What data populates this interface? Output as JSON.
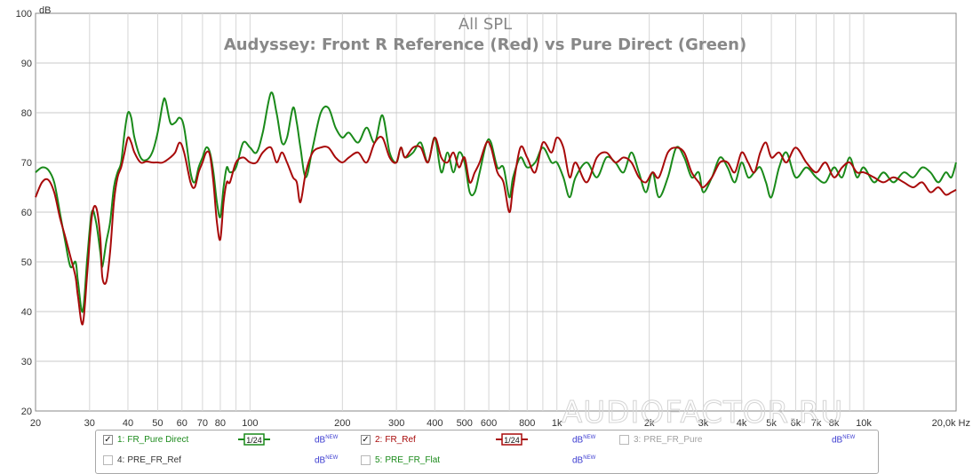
{
  "chart_data": {
    "type": "line",
    "title": "All SPL",
    "subtitle": "Audyssey: Front R Reference (Red) vs Pure Direct (Green)",
    "ylabel": "dB",
    "xlabel_unit": "Hz",
    "xscale": "log",
    "xlim": [
      20,
      20000
    ],
    "ylim": [
      20,
      100
    ],
    "grid": true,
    "yticks": [
      "100",
      "90",
      "80",
      "70",
      "60",
      "50",
      "40",
      "30",
      "20"
    ],
    "xticks": [
      {
        "v": 20,
        "l": "20"
      },
      {
        "v": 30,
        "l": "30"
      },
      {
        "v": 40,
        "l": "40"
      },
      {
        "v": 50,
        "l": "50"
      },
      {
        "v": 60,
        "l": "60"
      },
      {
        "v": 70,
        "l": "70"
      },
      {
        "v": 80,
        "l": "80"
      },
      {
        "v": 100,
        "l": "100"
      },
      {
        "v": 200,
        "l": "200"
      },
      {
        "v": 300,
        "l": "300"
      },
      {
        "v": 400,
        "l": "400"
      },
      {
        "v": 500,
        "l": "500"
      },
      {
        "v": 600,
        "l": "600"
      },
      {
        "v": 800,
        "l": "800"
      },
      {
        "v": 1000,
        "l": "1k"
      },
      {
        "v": 2000,
        "l": "2k"
      },
      {
        "v": 3000,
        "l": "3k"
      },
      {
        "v": 4000,
        "l": "4k"
      },
      {
        "v": 5000,
        "l": "5k"
      },
      {
        "v": 6000,
        "l": "6k"
      },
      {
        "v": 7000,
        "l": "7k"
      },
      {
        "v": 8000,
        "l": "8k"
      },
      {
        "v": 10000,
        "l": "10k"
      },
      {
        "v": 20000,
        "l": "20,0k Hz"
      }
    ],
    "series": [
      {
        "name": "FR_Pure Direct",
        "color": "#1a8a1a",
        "points": [
          [
            20,
            68
          ],
          [
            21,
            69
          ],
          [
            22,
            68.5
          ],
          [
            23,
            66
          ],
          [
            24,
            60
          ],
          [
            25,
            54
          ],
          [
            26,
            49
          ],
          [
            27,
            50
          ],
          [
            27.5,
            46
          ],
          [
            28.5,
            40
          ],
          [
            29.5,
            51
          ],
          [
            30.5,
            60
          ],
          [
            31.5,
            58
          ],
          [
            32.5,
            52
          ],
          [
            33,
            49
          ],
          [
            34,
            54
          ],
          [
            35,
            58
          ],
          [
            36,
            65
          ],
          [
            37,
            68
          ],
          [
            38,
            70
          ],
          [
            39,
            76
          ],
          [
            40,
            80
          ],
          [
            41,
            79
          ],
          [
            42,
            75
          ],
          [
            44,
            71
          ],
          [
            46,
            70.5
          ],
          [
            48,
            72
          ],
          [
            50,
            76
          ],
          [
            52,
            82
          ],
          [
            53,
            82.5
          ],
          [
            55,
            78
          ],
          [
            57,
            78
          ],
          [
            59,
            79
          ],
          [
            61,
            77
          ],
          [
            64,
            68
          ],
          [
            66,
            66
          ],
          [
            68,
            69
          ],
          [
            70,
            71
          ],
          [
            72,
            73
          ],
          [
            74,
            72
          ],
          [
            76,
            68
          ],
          [
            78,
            62
          ],
          [
            80,
            59
          ],
          [
            82,
            65
          ],
          [
            84,
            69
          ],
          [
            86,
            68
          ],
          [
            90,
            69
          ],
          [
            95,
            74
          ],
          [
            100,
            73
          ],
          [
            105,
            72
          ],
          [
            110,
            76
          ],
          [
            117,
            84
          ],
          [
            122,
            80
          ],
          [
            127,
            74
          ],
          [
            132,
            75
          ],
          [
            138,
            81
          ],
          [
            142,
            78
          ],
          [
            146,
            73
          ],
          [
            152,
            67
          ],
          [
            160,
            73
          ],
          [
            170,
            80
          ],
          [
            180,
            81
          ],
          [
            190,
            77
          ],
          [
            200,
            75
          ],
          [
            210,
            76
          ],
          [
            225,
            74
          ],
          [
            240,
            77
          ],
          [
            255,
            74
          ],
          [
            270,
            79.5
          ],
          [
            285,
            72
          ],
          [
            300,
            70
          ],
          [
            310,
            73
          ],
          [
            320,
            71
          ],
          [
            340,
            72
          ],
          [
            360,
            74
          ],
          [
            380,
            70
          ],
          [
            400,
            75
          ],
          [
            420,
            68
          ],
          [
            440,
            72
          ],
          [
            460,
            68
          ],
          [
            480,
            72
          ],
          [
            500,
            70
          ],
          [
            520,
            64
          ],
          [
            540,
            64
          ],
          [
            560,
            68
          ],
          [
            590,
            74
          ],
          [
            610,
            74
          ],
          [
            640,
            69
          ],
          [
            670,
            69
          ],
          [
            700,
            63
          ],
          [
            720,
            67
          ],
          [
            760,
            71
          ],
          [
            800,
            69
          ],
          [
            850,
            70
          ],
          [
            900,
            73
          ],
          [
            960,
            70
          ],
          [
            1000,
            70
          ],
          [
            1050,
            67
          ],
          [
            1100,
            63
          ],
          [
            1150,
            67
          ],
          [
            1250,
            70
          ],
          [
            1350,
            67
          ],
          [
            1450,
            71
          ],
          [
            1550,
            70
          ],
          [
            1650,
            68
          ],
          [
            1750,
            72
          ],
          [
            1850,
            68
          ],
          [
            1950,
            64
          ],
          [
            2050,
            68
          ],
          [
            2150,
            63
          ],
          [
            2300,
            67
          ],
          [
            2450,
            73
          ],
          [
            2600,
            71
          ],
          [
            2750,
            67
          ],
          [
            2900,
            68
          ],
          [
            3000,
            64
          ],
          [
            3200,
            67
          ],
          [
            3400,
            71
          ],
          [
            3600,
            69
          ],
          [
            3800,
            66
          ],
          [
            4000,
            70
          ],
          [
            4200,
            67
          ],
          [
            4400,
            68
          ],
          [
            4600,
            69
          ],
          [
            4800,
            66
          ],
          [
            5000,
            63
          ],
          [
            5300,
            69
          ],
          [
            5600,
            72
          ],
          [
            6000,
            67
          ],
          [
            6500,
            69
          ],
          [
            7000,
            67
          ],
          [
            7500,
            66
          ],
          [
            8000,
            69
          ],
          [
            8500,
            67
          ],
          [
            9000,
            71
          ],
          [
            9500,
            67
          ],
          [
            10000,
            69
          ],
          [
            10800,
            66
          ],
          [
            11600,
            68
          ],
          [
            12500,
            66
          ],
          [
            13500,
            68
          ],
          [
            14500,
            67
          ],
          [
            15500,
            69
          ],
          [
            16500,
            68
          ],
          [
            17500,
            66
          ],
          [
            18500,
            68
          ],
          [
            19300,
            67
          ],
          [
            20000,
            70
          ]
        ]
      },
      {
        "name": "FR_Ref",
        "color": "#a80a0a",
        "points": [
          [
            20,
            63
          ],
          [
            21,
            66
          ],
          [
            22,
            66.5
          ],
          [
            23,
            64
          ],
          [
            24,
            59
          ],
          [
            25,
            55
          ],
          [
            26,
            51
          ],
          [
            27,
            47
          ],
          [
            27.5,
            43
          ],
          [
            28.5,
            37.5
          ],
          [
            29.5,
            48
          ],
          [
            30.5,
            59
          ],
          [
            31.5,
            61
          ],
          [
            32.5,
            55
          ],
          [
            33,
            47
          ],
          [
            34,
            46
          ],
          [
            35,
            52
          ],
          [
            36,
            62
          ],
          [
            37,
            67
          ],
          [
            38,
            69
          ],
          [
            39,
            72
          ],
          [
            40,
            75
          ],
          [
            41,
            74
          ],
          [
            42,
            72
          ],
          [
            44,
            70
          ],
          [
            46,
            70.2
          ],
          [
            48,
            70
          ],
          [
            50,
            70
          ],
          [
            52,
            70
          ],
          [
            55,
            71
          ],
          [
            57,
            72
          ],
          [
            59,
            74
          ],
          [
            61,
            72
          ],
          [
            64,
            66
          ],
          [
            66,
            65
          ],
          [
            68,
            68
          ],
          [
            70,
            70
          ],
          [
            72,
            72
          ],
          [
            74,
            71.5
          ],
          [
            76,
            66
          ],
          [
            78,
            58
          ],
          [
            80,
            54.5
          ],
          [
            82,
            62
          ],
          [
            84,
            66
          ],
          [
            86,
            66
          ],
          [
            90,
            70
          ],
          [
            95,
            71
          ],
          [
            100,
            70
          ],
          [
            105,
            70
          ],
          [
            110,
            72
          ],
          [
            117,
            73
          ],
          [
            122,
            70
          ],
          [
            127,
            72
          ],
          [
            132,
            70
          ],
          [
            138,
            67
          ],
          [
            142,
            66
          ],
          [
            146,
            62
          ],
          [
            152,
            68
          ],
          [
            160,
            72
          ],
          [
            170,
            73
          ],
          [
            180,
            73
          ],
          [
            190,
            71
          ],
          [
            200,
            70
          ],
          [
            210,
            71
          ],
          [
            225,
            72
          ],
          [
            240,
            70
          ],
          [
            255,
            74
          ],
          [
            270,
            75
          ],
          [
            285,
            71
          ],
          [
            300,
            70
          ],
          [
            310,
            73
          ],
          [
            320,
            71
          ],
          [
            340,
            73
          ],
          [
            360,
            73
          ],
          [
            380,
            70
          ],
          [
            400,
            75
          ],
          [
            420,
            71
          ],
          [
            440,
            70
          ],
          [
            460,
            72
          ],
          [
            480,
            69
          ],
          [
            500,
            71
          ],
          [
            520,
            66
          ],
          [
            540,
            68
          ],
          [
            560,
            70
          ],
          [
            590,
            74
          ],
          [
            610,
            73
          ],
          [
            640,
            68
          ],
          [
            670,
            66
          ],
          [
            700,
            60
          ],
          [
            720,
            65
          ],
          [
            760,
            73
          ],
          [
            800,
            71
          ],
          [
            850,
            68
          ],
          [
            900,
            74
          ],
          [
            960,
            72
          ],
          [
            1000,
            75
          ],
          [
            1050,
            73
          ],
          [
            1100,
            67
          ],
          [
            1150,
            70
          ],
          [
            1250,
            66
          ],
          [
            1350,
            71
          ],
          [
            1450,
            72
          ],
          [
            1550,
            70
          ],
          [
            1650,
            71
          ],
          [
            1750,
            70
          ],
          [
            1850,
            67
          ],
          [
            1950,
            66
          ],
          [
            2050,
            68
          ],
          [
            2150,
            67
          ],
          [
            2300,
            72
          ],
          [
            2450,
            73
          ],
          [
            2600,
            72
          ],
          [
            2750,
            68
          ],
          [
            2900,
            66
          ],
          [
            3000,
            65
          ],
          [
            3200,
            67
          ],
          [
            3400,
            70
          ],
          [
            3600,
            70
          ],
          [
            3800,
            68
          ],
          [
            4000,
            72
          ],
          [
            4200,
            70
          ],
          [
            4400,
            68
          ],
          [
            4600,
            72
          ],
          [
            4800,
            74
          ],
          [
            5000,
            71
          ],
          [
            5300,
            72
          ],
          [
            5600,
            70
          ],
          [
            6000,
            73
          ],
          [
            6500,
            70
          ],
          [
            7000,
            68
          ],
          [
            7500,
            70
          ],
          [
            8000,
            67
          ],
          [
            8500,
            69
          ],
          [
            9000,
            70
          ],
          [
            9500,
            68
          ],
          [
            10000,
            68
          ],
          [
            10800,
            67
          ],
          [
            11600,
            66
          ],
          [
            12500,
            67
          ],
          [
            13500,
            66
          ],
          [
            14500,
            65
          ],
          [
            15500,
            66
          ],
          [
            16500,
            64
          ],
          [
            17500,
            65
          ],
          [
            18500,
            63.5
          ],
          [
            19300,
            64
          ],
          [
            20000,
            64.5
          ]
        ]
      }
    ]
  },
  "watermark": "AUDIOFACTOR.RU",
  "legend": {
    "items": [
      {
        "index": "1:",
        "name": "FR_Pure Direct",
        "checked": true,
        "smoothing": "1/24",
        "unit": "dB",
        "unit_tag": "NEW",
        "color": "#1a8a1a"
      },
      {
        "index": "2:",
        "name": "FR_Ref",
        "checked": true,
        "smoothing": "1/24",
        "unit": "dB",
        "unit_tag": "NEW",
        "color": "#a80a0a"
      },
      {
        "index": "3:",
        "name": "PRE_FR_Pure",
        "checked": false,
        "unit": "dB",
        "unit_tag": "NEW",
        "color": "#a0a0a0"
      },
      {
        "index": "4:",
        "name": "PRE_FR_Ref",
        "checked": false,
        "unit": "dB",
        "unit_tag": "NEW",
        "color": "#333333"
      },
      {
        "index": "5:",
        "name": "PRE_FR_Flat",
        "checked": false,
        "unit": "dB",
        "unit_tag": "NEW",
        "color": "#1a8a1a"
      }
    ]
  }
}
